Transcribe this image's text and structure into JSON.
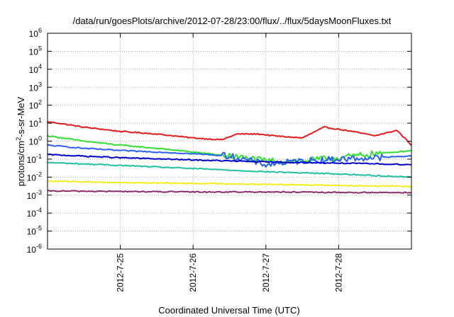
{
  "chart_data": {
    "type": "line",
    "title": "/data/run/goesPlots/archive/2012-07-28/23:00/flux/../flux/5daysMoonFluxes.txt",
    "xlabel": "Coordinated Universal Time (UTC)",
    "ylabel": {
      "base": "protons/cm",
      "sup": "2",
      "rest": "-s-sr-MeV"
    },
    "x_range_days": [
      0,
      5
    ],
    "x_ticks": [
      {
        "day": 1,
        "label": "2012-7-25"
      },
      {
        "day": 2,
        "label": "2012-7-26"
      },
      {
        "day": 3,
        "label": "2012-7-27"
      },
      {
        "day": 4,
        "label": "2012-7-28"
      }
    ],
    "y_scale": "log",
    "y_range_exp": [
      -6,
      6
    ],
    "y_ticks": [
      {
        "base": "10",
        "exp": "6"
      },
      {
        "base": "10",
        "exp": "5"
      },
      {
        "base": "10",
        "exp": "4"
      },
      {
        "base": "10",
        "exp": "3"
      },
      {
        "base": "10",
        "exp": "2"
      },
      {
        "base": "10",
        "exp": "1"
      },
      {
        "base": "10",
        "exp": "0"
      },
      {
        "base": "10",
        "exp": "-1"
      },
      {
        "base": "10",
        "exp": "-2"
      },
      {
        "base": "10",
        "exp": "-3"
      },
      {
        "base": "10",
        "exp": "-4"
      },
      {
        "base": "10",
        "exp": "-5"
      },
      {
        "base": "10",
        "exp": "-6"
      }
    ],
    "grid": true,
    "series": [
      {
        "color": "#e41a1c",
        "x": [
          0,
          0.15,
          0.5,
          1,
          1.5,
          2,
          2.4,
          2.6,
          2.9,
          3.1,
          3.5,
          3.8,
          4.1,
          4.5,
          4.8,
          4.95,
          5
        ],
        "values": [
          12,
          10,
          6,
          3.5,
          2.5,
          1.5,
          1.2,
          2.5,
          2.5,
          2,
          1.5,
          6,
          4,
          2,
          4,
          1,
          0.6
        ]
      },
      {
        "color": "#33dd33",
        "x": [
          0,
          0.5,
          1,
          1.5,
          2,
          2.5,
          3,
          3.5,
          4,
          4.5,
          5
        ],
        "values": [
          2,
          1,
          0.6,
          0.4,
          0.25,
          0.15,
          0.08,
          0.08,
          0.12,
          0.2,
          0.3
        ]
      },
      {
        "color": "#2a5ff5",
        "x": [
          0,
          0.5,
          1,
          1.5,
          2,
          2.5,
          3,
          3.5,
          4,
          4.5,
          5
        ],
        "values": [
          0.6,
          0.4,
          0.3,
          0.25,
          0.2,
          0.15,
          0.05,
          0.08,
          0.1,
          0.12,
          0.15
        ]
      },
      {
        "color": "#0000cc",
        "x": [
          0,
          1,
          2,
          3,
          4,
          5
        ],
        "values": [
          0.18,
          0.12,
          0.09,
          0.07,
          0.06,
          0.05
        ]
      },
      {
        "color": "#20c0a0",
        "x": [
          0,
          1,
          2,
          3,
          4,
          5
        ],
        "values": [
          0.065,
          0.045,
          0.03,
          0.02,
          0.015,
          0.01
        ]
      },
      {
        "color": "#f2ee1e",
        "x": [
          0,
          1,
          2,
          3,
          4,
          5
        ],
        "values": [
          0.006,
          0.005,
          0.0045,
          0.004,
          0.0035,
          0.003
        ]
      },
      {
        "color": "#8b2a6b",
        "x": [
          0,
          1,
          2,
          3,
          4,
          5
        ],
        "values": [
          0.0017,
          0.0016,
          0.0015,
          0.0015,
          0.0014,
          0.0014
        ]
      }
    ]
  }
}
